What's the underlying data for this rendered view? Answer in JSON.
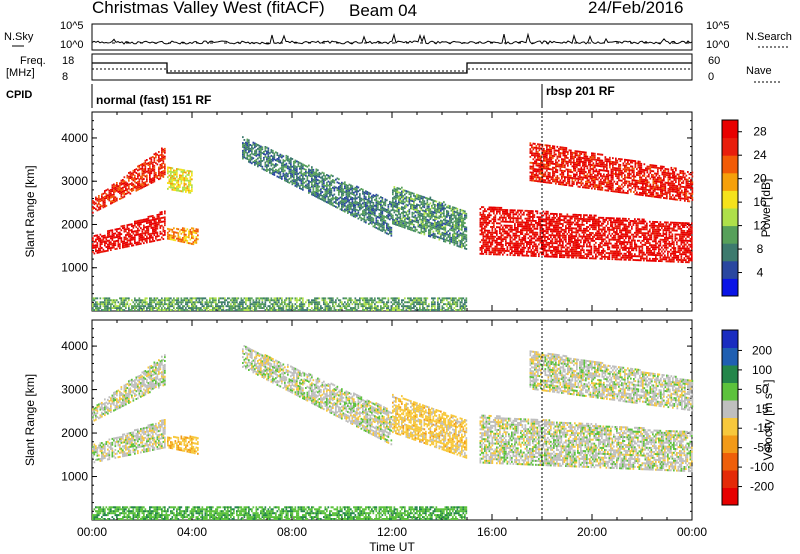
{
  "header": {
    "station": "Christmas Valley West (fitACF)",
    "beam": "Beam 04",
    "date": "24/Feb/2016"
  },
  "labels": {
    "nsky": "N.Sky",
    "nsearch": "N.Search",
    "freq": "Freq.",
    "freq_unit": "[MHz]",
    "nave": "Nave",
    "cpid": "CPID",
    "mode_a": "normal (fast) 151 RF",
    "mode_b": "rbsp 201 RF",
    "nsky_ticks": [
      "10^5",
      "10^0"
    ],
    "freq_ticks": [
      "18",
      "8"
    ],
    "nave_ticks": [
      "60",
      "0"
    ]
  },
  "colors": {
    "power_scale": [
      "#0a14e6",
      "#2a47a0",
      "#3d7a6e",
      "#57a05a",
      "#aee04a",
      "#f5e21c",
      "#f6a00a",
      "#f25b06",
      "#e81e0c",
      "#e80000"
    ],
    "velocity_scale": [
      "#1a2cc0",
      "#1f5fb2",
      "#24864a",
      "#5cc23c",
      "#bfbfbf",
      "#f7c83c",
      "#f29a18",
      "#ee5f0a",
      "#e42a08",
      "#e60000"
    ]
  },
  "chart_data": [
    {
      "type": "heatmap",
      "title": "Power",
      "ylabel": "Slant Range [km]",
      "xlabel": "",
      "x_tick_labels": [
        "00:00",
        "04:00",
        "08:00",
        "12:00",
        "16:00",
        "20:00",
        "00:00"
      ],
      "y_ticks": [
        1000,
        2000,
        3000,
        4000
      ],
      "ylim": [
        0,
        4600
      ],
      "xlim_hours": [
        0,
        24
      ],
      "colorbar": {
        "label": "Power [dB]",
        "ticks": [
          4,
          8,
          12,
          16,
          20,
          24,
          28
        ],
        "range": [
          0,
          30
        ]
      },
      "mode_switch_hours": 18.0,
      "echo_regions": [
        {
          "t0": 0.0,
          "t1": 2.9,
          "r0a": 1300,
          "r1a": 1700,
          "r0b": 1650,
          "r1b": 2300,
          "power": 28
        },
        {
          "t0": 0.0,
          "t1": 2.9,
          "r0a": 2250,
          "r1a": 2550,
          "r0b": 3100,
          "r1b": 3800,
          "power": 26
        },
        {
          "t0": 3.0,
          "t1": 4.2,
          "r0a": 1650,
          "r1a": 1900,
          "r0b": 1500,
          "r1b": 1900,
          "power": 20
        },
        {
          "t0": 3.0,
          "t1": 4.0,
          "r0a": 2800,
          "r1a": 3300,
          "r0b": 2700,
          "r1b": 3200,
          "power": 16
        },
        {
          "t0": 6.0,
          "t1": 12.0,
          "r0a": 3500,
          "r1a": 4000,
          "r0b": 1700,
          "r1b": 2500,
          "power": 8
        },
        {
          "t0": 12.0,
          "t1": 15.0,
          "r0a": 2000,
          "r1a": 2900,
          "r0b": 1400,
          "r1b": 2300,
          "power": 9
        },
        {
          "t0": 15.5,
          "t1": 24.0,
          "r0a": 1300,
          "r1a": 2400,
          "r0b": 1100,
          "r1b": 2000,
          "power": 28
        },
        {
          "t0": 17.5,
          "t1": 24.0,
          "r0a": 3000,
          "r1a": 3900,
          "r0b": 2500,
          "r1b": 3200,
          "power": 27
        },
        {
          "t0": 0.0,
          "t1": 15.0,
          "r0a": 0,
          "r1a": 300,
          "r0b": 0,
          "r1b": 300,
          "power": 10
        }
      ]
    },
    {
      "type": "heatmap",
      "title": "Velocity",
      "ylabel": "Slant Range [km]",
      "xlabel": "Time UT",
      "x_tick_labels": [
        "00:00",
        "04:00",
        "08:00",
        "12:00",
        "16:00",
        "20:00",
        "00:00"
      ],
      "y_ticks": [
        1000,
        2000,
        3000,
        4000
      ],
      "ylim": [
        0,
        4600
      ],
      "xlim_hours": [
        0,
        24
      ],
      "colorbar": {
        "label": "Velocity [m s^-1]",
        "ticks": [
          200,
          100,
          50,
          15,
          -15,
          -50,
          -100,
          -200
        ],
        "range": [
          -250,
          250
        ]
      },
      "mode_switch_hours": 18.0,
      "echo_regions": [
        {
          "t0": 0.0,
          "t1": 2.9,
          "r0a": 1300,
          "r1a": 1700,
          "r0b": 1650,
          "r1b": 2300,
          "velocity": 0
        },
        {
          "t0": 0.0,
          "t1": 2.9,
          "r0a": 2250,
          "r1a": 2550,
          "r0b": 3100,
          "r1b": 3800,
          "velocity": 0
        },
        {
          "t0": 3.0,
          "t1": 4.2,
          "r0a": 1650,
          "r1a": 1900,
          "r0b": 1500,
          "r1b": 1900,
          "velocity": -40
        },
        {
          "t0": 6.0,
          "t1": 12.0,
          "r0a": 3500,
          "r1a": 4000,
          "r0b": 1700,
          "r1b": 2500,
          "velocity": 0
        },
        {
          "t0": 12.0,
          "t1": 15.0,
          "r0a": 2000,
          "r1a": 2900,
          "r0b": 1400,
          "r1b": 2300,
          "velocity": -30
        },
        {
          "t0": 15.5,
          "t1": 24.0,
          "r0a": 1300,
          "r1a": 2400,
          "r0b": 1100,
          "r1b": 2000,
          "velocity": 0
        },
        {
          "t0": 17.5,
          "t1": 24.0,
          "r0a": 3000,
          "r1a": 3900,
          "r0b": 2500,
          "r1b": 3200,
          "velocity": 0
        },
        {
          "t0": 0.0,
          "t1": 15.0,
          "r0a": 0,
          "r1a": 300,
          "r0b": 0,
          "r1b": 300,
          "velocity": 40
        }
      ]
    }
  ]
}
